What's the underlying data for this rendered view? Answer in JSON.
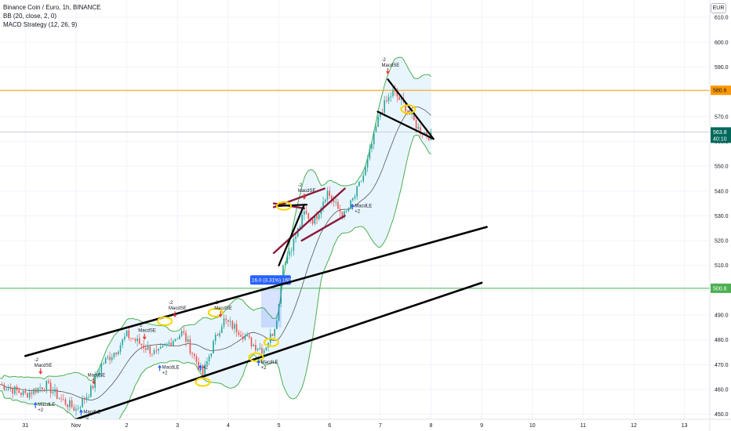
{
  "legend": {
    "symbol_line": "Binance Coin / Euro, 1h, BINANCE",
    "bb_line": "BB (20, close, 2, 0)",
    "macd_line": "MACD Strategy (12, 26, 9)"
  },
  "currency": "EUR",
  "colors": {
    "up": "#26a69a",
    "down": "#ef5350",
    "band": "#4caf50",
    "basis": "#555555",
    "band_fill": "#e3f2fd",
    "orange_line": "#ff9800",
    "green_line": "#4caf50",
    "trendline": "#000000",
    "wedge": "#8b1a3a",
    "highlight": "#f5d800",
    "last_price_tag": "#00695c",
    "measure": "#2962ff",
    "buy_arrow": "#2962ff",
    "sell_arrow": "#e53935"
  },
  "chart_data": {
    "type": "candlestick",
    "y_range": [
      448,
      617
    ],
    "y_ticks": [
      "610.0",
      "600.0",
      "590.0",
      "580.0",
      "570.0",
      "560.0",
      "550.0",
      "540.0",
      "530.0",
      "520.0",
      "510.0",
      "500.0",
      "490.0",
      "480.0",
      "470.0",
      "460.0",
      "450.0"
    ],
    "x_labels": [
      "31",
      "Nov",
      "2",
      "3",
      "4",
      "5",
      "6",
      "7",
      "8",
      "9",
      "10",
      "11",
      "12",
      "13"
    ],
    "x_start_day": 0.5,
    "x_end_day": 14.5,
    "price_lines": [
      {
        "name": "orange",
        "value": 580.6,
        "label": "580.6"
      },
      {
        "name": "green",
        "value": 500.8,
        "label": "500.8"
      }
    ],
    "last_price": {
      "value": 563.8,
      "label": "563.8",
      "countdown": "40:10"
    },
    "channel_lines": [
      {
        "from": [
          1.0,
          473.5
        ],
        "to": [
          10.1,
          525.5
        ]
      },
      {
        "from": [
          2.0,
          448.0
        ],
        "to": [
          10.0,
          503.0
        ]
      }
    ],
    "wedge_lines": [
      {
        "from": [
          5.9,
          533.5
        ],
        "to": [
          6.9,
          541.0
        ]
      },
      {
        "from": [
          6.45,
          520.0
        ],
        "to": [
          7.3,
          530.0
        ]
      },
      {
        "from": [
          5.9,
          515.0
        ],
        "to": [
          7.3,
          541.0
        ]
      },
      {
        "from": [
          5.9,
          535.0
        ],
        "to": [
          6.5,
          533.0
        ]
      }
    ],
    "triangle_lines": [
      {
        "from": [
          6.0,
          510.0
        ],
        "to": [
          6.5,
          534.5
        ]
      },
      {
        "from": [
          6.0,
          534.0
        ],
        "to": [
          6.55,
          534.5
        ]
      }
    ],
    "flag_lines": [
      {
        "from": [
          8.15,
          585.0
        ],
        "to": [
          9.05,
          561.0
        ]
      },
      {
        "from": [
          7.95,
          572.0
        ],
        "to": [
          9.05,
          561.0
        ]
      }
    ],
    "measure": {
      "label": "16.0 (3.31%) 160",
      "from_day": 5.65,
      "to_day": 6.05,
      "low": 485.0,
      "high": 501.0
    },
    "highlights": [
      {
        "day": 3.75,
        "price": 487.5
      },
      {
        "day": 4.75,
        "price": 491.0
      },
      {
        "day": 4.5,
        "price": 463.0
      },
      {
        "day": 5.55,
        "price": 473.0
      },
      {
        "day": 5.85,
        "price": 479.0
      },
      {
        "day": 6.1,
        "price": 534.0
      },
      {
        "day": 8.55,
        "price": 573.0
      }
    ],
    "signals": [
      {
        "type": "sell",
        "day": 1.3,
        "price": 466.0,
        "labels": [
          "-2",
          "MacdSE"
        ]
      },
      {
        "type": "buy",
        "day": 1.2,
        "price": 455.0,
        "labels": [
          "MacdLE",
          "+2"
        ]
      },
      {
        "type": "buy",
        "day": 2.1,
        "price": 452.0,
        "labels": [
          "MacdLE",
          "+2"
        ]
      },
      {
        "type": "sell",
        "day": 2.35,
        "price": 462.0,
        "labels": [
          "MacdSE"
        ]
      },
      {
        "type": "sell",
        "day": 3.35,
        "price": 480.0,
        "labels": [
          "-2",
          "MacdSE"
        ]
      },
      {
        "type": "buy",
        "day": 3.65,
        "price": 470.0,
        "labels": [
          "MacdLE",
          "+2"
        ]
      },
      {
        "type": "sell",
        "day": 3.95,
        "price": 489.0,
        "labels": [
          "-2",
          "MacdSE"
        ]
      },
      {
        "type": "buy",
        "day": 4.45,
        "price": 470.0,
        "labels": [
          "+2"
        ]
      },
      {
        "type": "sell",
        "day": 4.85,
        "price": 489.0,
        "labels": [
          "-2",
          "MacdSE"
        ]
      },
      {
        "type": "buy",
        "day": 5.6,
        "price": 472.0,
        "labels": [
          "MacdLE",
          "+2"
        ]
      },
      {
        "type": "sell",
        "day": 6.5,
        "price": 536.5,
        "labels": [
          "-2",
          "MacdSE"
        ]
      },
      {
        "type": "buy",
        "day": 7.45,
        "price": 535.0,
        "labels": [
          "MacdLE",
          "+2"
        ]
      },
      {
        "type": "sell",
        "day": 8.15,
        "price": 587.0,
        "labels": [
          "-2",
          "MacdSE"
        ]
      }
    ]
  }
}
